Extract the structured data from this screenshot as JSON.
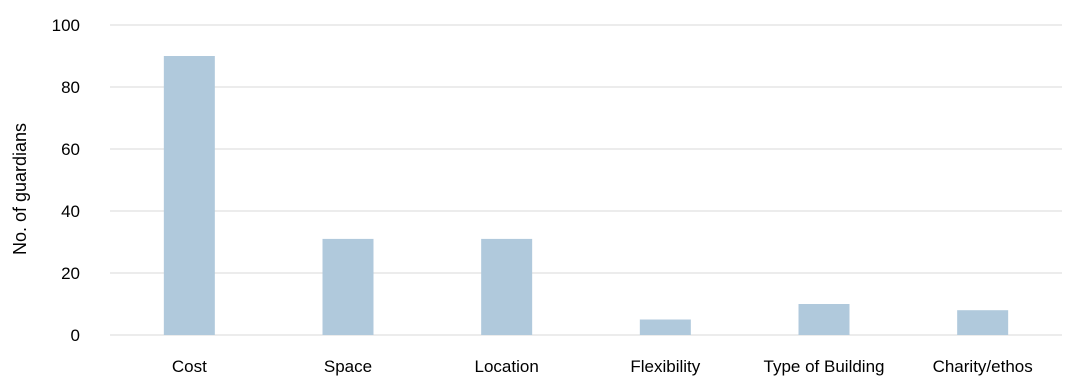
{
  "chart_data": {
    "type": "bar",
    "title": "",
    "xlabel": "",
    "ylabel": "No. of guardians",
    "categories": [
      "Cost",
      "Space",
      "Location",
      "Flexibility",
      "Type of Building",
      "Charity/ethos"
    ],
    "values": [
      90,
      31,
      31,
      5,
      10,
      8
    ],
    "ylim": [
      0,
      100
    ],
    "yticks": [
      0,
      20,
      40,
      60,
      80,
      100
    ],
    "grid": true,
    "legend": "none",
    "colors": {
      "bar": "#b0c9dc",
      "grid": "#d9d9d9",
      "axis": "#d9d9d9",
      "text": "#000000"
    }
  }
}
